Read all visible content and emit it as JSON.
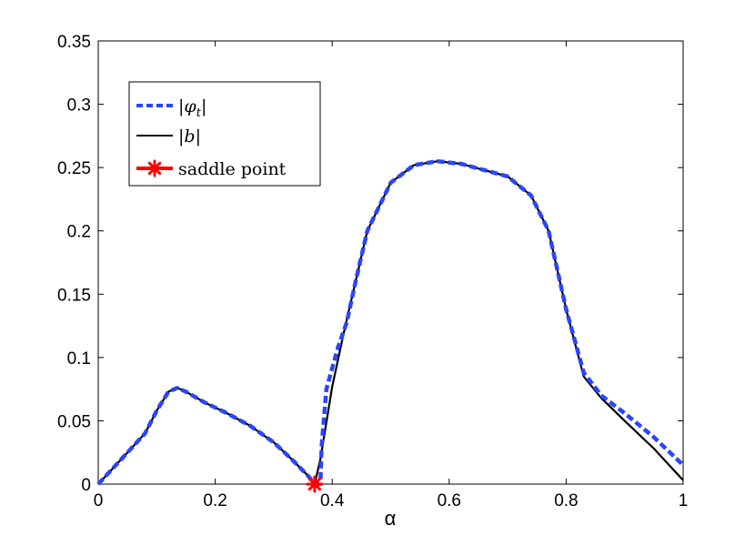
{
  "chart_data": {
    "type": "line",
    "title": "",
    "xlabel": "α",
    "ylabel": "",
    "xlim": [
      0,
      1
    ],
    "ylim": [
      0,
      0.35
    ],
    "xticks": [
      "0",
      "0.2",
      "0.4",
      "0.6",
      "0.8",
      "1"
    ],
    "xtick_values": [
      0,
      0.2,
      0.4,
      0.6,
      0.8,
      1.0
    ],
    "yticks": [
      "0",
      "0.05",
      "0.1",
      "0.15",
      "0.2",
      "0.25",
      "0.3",
      "0.35"
    ],
    "ytick_values": [
      0,
      0.05,
      0.1,
      0.15,
      0.2,
      0.25,
      0.3,
      0.35
    ],
    "grid": false,
    "legend_position": "top-left",
    "series": [
      {
        "name": "|φ_t|",
        "color": "#2b45ff",
        "style": "dashed",
        "x": [
          0,
          0.02,
          0.05,
          0.08,
          0.1,
          0.12,
          0.135,
          0.15,
          0.18,
          0.22,
          0.26,
          0.3,
          0.33,
          0.36,
          0.37,
          0.375,
          0.378,
          0.38,
          0.382,
          0.39,
          0.41,
          0.425,
          0.44,
          0.46,
          0.5,
          0.54,
          0.58,
          0.62,
          0.66,
          0.7,
          0.74,
          0.77,
          0.8,
          0.83,
          0.86,
          0.9,
          0.95,
          1.0
        ],
        "y": [
          0,
          0.01,
          0.025,
          0.04,
          0.058,
          0.073,
          0.076,
          0.073,
          0.065,
          0.056,
          0.046,
          0.033,
          0.02,
          0.006,
          0.0,
          0.0,
          0.0,
          0.003,
          0.03,
          0.075,
          0.108,
          0.128,
          0.16,
          0.2,
          0.238,
          0.252,
          0.255,
          0.253,
          0.248,
          0.243,
          0.228,
          0.2,
          0.138,
          0.088,
          0.07,
          0.056,
          0.037,
          0.015
        ]
      },
      {
        "name": "|b|",
        "color": "#000000",
        "style": "solid",
        "x": [
          0,
          0.02,
          0.05,
          0.08,
          0.1,
          0.12,
          0.135,
          0.15,
          0.18,
          0.22,
          0.26,
          0.3,
          0.33,
          0.36,
          0.37,
          0.38,
          0.4,
          0.42,
          0.44,
          0.46,
          0.5,
          0.54,
          0.58,
          0.62,
          0.66,
          0.7,
          0.74,
          0.77,
          0.8,
          0.83,
          0.86,
          0.9,
          0.95,
          1.0
        ],
        "y": [
          0,
          0.01,
          0.025,
          0.04,
          0.058,
          0.073,
          0.076,
          0.073,
          0.065,
          0.056,
          0.046,
          0.033,
          0.02,
          0.006,
          0.0,
          0.02,
          0.077,
          0.12,
          0.16,
          0.2,
          0.238,
          0.252,
          0.255,
          0.253,
          0.248,
          0.243,
          0.228,
          0.2,
          0.138,
          0.085,
          0.068,
          0.05,
          0.028,
          0.003
        ]
      }
    ],
    "markers": [
      {
        "name": "saddle point",
        "x": 0.37,
        "y": 0.0,
        "color": "#ff0000",
        "symbol": "asterisk"
      }
    ],
    "legend": [
      {
        "label_main": "|φ",
        "label_sub": "t",
        "label_end": "|",
        "style": "dashed",
        "color": "#2b45ff"
      },
      {
        "label_main": "|b|",
        "label_sub": "",
        "label_end": "",
        "style": "solid",
        "color": "#000000"
      },
      {
        "label_main": "saddle point",
        "label_sub": "",
        "label_end": "",
        "style": "marker",
        "color": "#ff0000"
      }
    ]
  }
}
